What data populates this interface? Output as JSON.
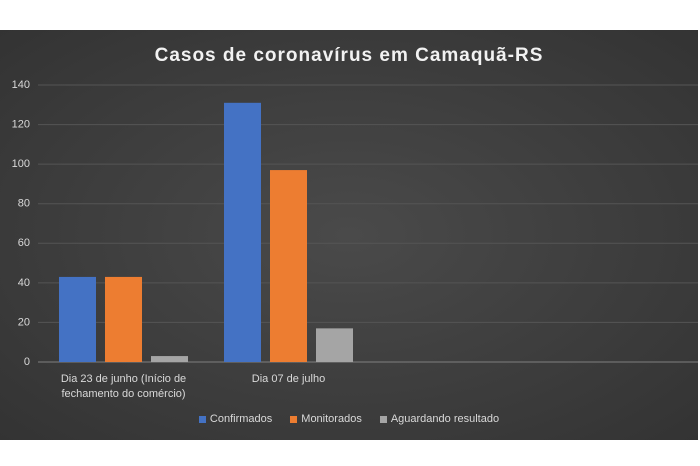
{
  "chart_data": {
    "type": "bar",
    "title": "Casos de coronavírus em Camaquã-RS",
    "categories": [
      "Dia 23 de junho (Início de fechamento do comércio)",
      "Dia 07 de julho",
      null,
      null
    ],
    "series": [
      {
        "name": "Confirmados",
        "color": "#4472c4",
        "values": [
          43,
          131,
          null,
          null
        ]
      },
      {
        "name": "Monitorados",
        "color": "#ed7d31",
        "values": [
          43,
          97,
          null,
          null
        ]
      },
      {
        "name": "Aguardando resultado",
        "color": "#a5a5a5",
        "values": [
          3,
          17,
          null,
          null
        ]
      }
    ],
    "ylim": [
      0,
      140
    ],
    "yticks": [
      0,
      20,
      40,
      60,
      80,
      100,
      120,
      140
    ],
    "grid": true,
    "legend": "bottom"
  }
}
